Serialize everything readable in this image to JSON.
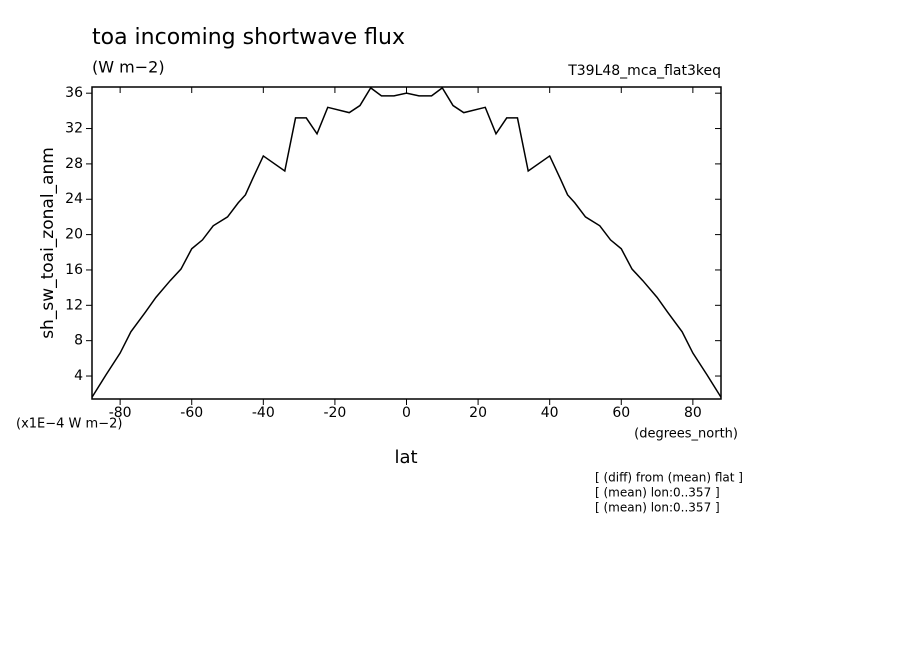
{
  "chart_data": {
    "type": "line",
    "title": "toa incoming shortwave flux",
    "units": "(W m−2)",
    "run_label": "T39L48_mca_flat3keq",
    "ylabel": "sh_sw_toai_zonal_anm",
    "scale_note": "(x1E−4 W m−2)",
    "xlabel": "lat",
    "xunits": "(degrees_north)",
    "notes": [
      "[ (diff) from (mean) flat ]",
      "[ (mean) lon:0..357 ]",
      "[ (mean) lon:0..357 ]"
    ],
    "x": [
      -87.86,
      -84,
      -80,
      -77,
      -73,
      -70,
      -66,
      -63,
      -60,
      -57,
      -54,
      -50,
      -47,
      -45,
      -43,
      -40,
      -34,
      -31,
      -28,
      -25,
      -22,
      -16,
      -13,
      -10,
      -7,
      -3.5,
      0,
      3.5,
      7,
      10,
      13,
      16,
      22,
      25,
      28,
      31,
      34,
      40,
      43,
      45,
      47,
      50,
      54,
      57,
      60,
      63,
      66,
      70,
      73,
      77,
      80,
      84,
      87.86
    ],
    "series": [
      {
        "color": "#000000",
        "values": [
          1.6,
          4.1,
          6.6,
          9.0,
          11.2,
          12.9,
          14.8,
          16.1,
          18.4,
          19.4,
          21.0,
          22.0,
          23.6,
          24.5,
          26.3,
          28.9,
          27.2,
          33.2,
          33.2,
          31.4,
          34.4,
          33.8,
          34.6,
          36.6,
          35.7,
          35.7,
          36.0,
          35.7,
          35.7,
          36.6,
          34.6,
          33.8,
          34.4,
          31.4,
          33.2,
          33.2,
          27.2,
          28.9,
          26.3,
          24.5,
          23.6,
          22.0,
          21.0,
          19.4,
          18.4,
          16.1,
          14.8,
          12.9,
          11.2,
          9.0,
          6.6,
          4.1,
          1.6
        ]
      }
    ],
    "xlim": [
      -87.86,
      87.86
    ],
    "ylim": [
      1.4,
      36.7
    ],
    "xticks": [
      -80,
      -60,
      -40,
      -20,
      0,
      20,
      40,
      60,
      80
    ],
    "yticks": [
      4,
      8,
      12,
      16,
      20,
      24,
      28,
      32,
      36
    ]
  }
}
